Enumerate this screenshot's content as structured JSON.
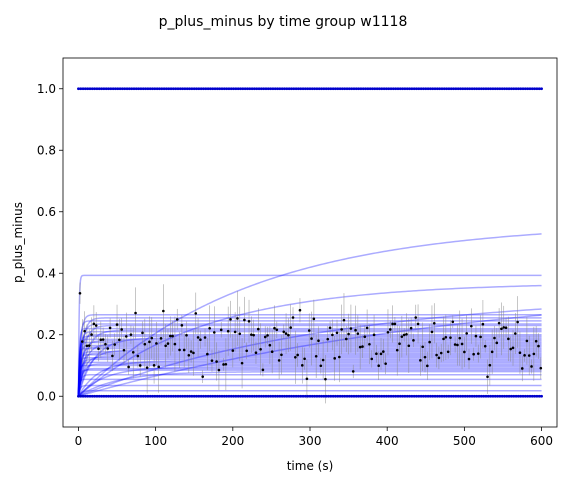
{
  "chart_data": {
    "type": "line",
    "title": "p_plus_minus by time group w1118",
    "xlabel": "time (s)",
    "ylabel": "p_plus_minus",
    "xlim": [
      -20,
      620
    ],
    "ylim": [
      -0.1,
      1.1
    ],
    "x_ticks": [
      0,
      100,
      200,
      300,
      400,
      500,
      600
    ],
    "y_ticks": [
      0.0,
      0.2,
      0.4,
      0.6,
      0.8,
      1.0
    ],
    "x_tick_labels": [
      "0",
      "100",
      "200",
      "300",
      "400",
      "500",
      "600"
    ],
    "y_tick_labels": [
      "0.0",
      "0.2",
      "0.4",
      "0.6",
      "0.8",
      "1.0"
    ],
    "grid": false,
    "legend": "none",
    "colors": {
      "fit": "#0000ff",
      "data": "#000000",
      "errorbar": "#8a8a8a",
      "boundary": "#0000cc"
    },
    "boundary_lines": [
      0.0,
      1.0
    ],
    "fit_curves": [
      {
        "plateau": 0.566,
        "rate": 0.0045
      },
      {
        "plateau": 0.4,
        "rate": 0.0018
      },
      {
        "plateau": 0.37,
        "rate": 0.006
      },
      {
        "plateau": 0.34,
        "rate": 0.003
      },
      {
        "plateau": 0.393,
        "rate": 1.2
      },
      {
        "plateau": 0.265,
        "rate": 0.35
      },
      {
        "plateau": 0.255,
        "rate": 0.2
      },
      {
        "plateau": 0.245,
        "rate": 0.5
      },
      {
        "plateau": 0.235,
        "rate": 0.25
      },
      {
        "plateau": 0.23,
        "rate": 0.15
      },
      {
        "plateau": 0.22,
        "rate": 0.8
      },
      {
        "plateau": 0.215,
        "rate": 0.1
      },
      {
        "plateau": 0.21,
        "rate": 0.4
      },
      {
        "plateau": 0.2,
        "rate": 0.3
      },
      {
        "plateau": 0.195,
        "rate": 0.6
      },
      {
        "plateau": 0.19,
        "rate": 0.05
      },
      {
        "plateau": 0.185,
        "rate": 0.7
      },
      {
        "plateau": 0.18,
        "rate": 0.2
      },
      {
        "plateau": 0.175,
        "rate": 0.9
      },
      {
        "plateau": 0.17,
        "rate": 0.12
      },
      {
        "plateau": 0.165,
        "rate": 0.5
      },
      {
        "plateau": 0.16,
        "rate": 0.3
      },
      {
        "plateau": 0.155,
        "rate": 1.0
      },
      {
        "plateau": 0.15,
        "rate": 0.08
      },
      {
        "plateau": 0.145,
        "rate": 0.4
      },
      {
        "plateau": 0.14,
        "rate": 0.25
      },
      {
        "plateau": 0.135,
        "rate": 0.6
      },
      {
        "plateau": 0.13,
        "rate": 0.15
      },
      {
        "plateau": 0.125,
        "rate": 0.7
      },
      {
        "plateau": 0.12,
        "rate": 0.35
      },
      {
        "plateau": 0.115,
        "rate": 0.04
      },
      {
        "plateau": 0.11,
        "rate": 0.5
      },
      {
        "plateau": 0.105,
        "rate": 0.2
      },
      {
        "plateau": 0.1,
        "rate": 0.9
      },
      {
        "plateau": 0.095,
        "rate": 0.03
      },
      {
        "plateau": 0.09,
        "rate": 0.3
      },
      {
        "plateau": 0.085,
        "rate": 0.6
      },
      {
        "plateau": 0.08,
        "rate": 0.02
      },
      {
        "plateau": 0.07,
        "rate": 0.4
      },
      {
        "plateau": 0.055,
        "rate": 0.8
      },
      {
        "plateau": 0.035,
        "rate": 0.5
      },
      {
        "plateau": 0.018,
        "rate": 0.3
      }
    ],
    "data_points": {
      "x_start": 2,
      "x_step": 3,
      "count": 200,
      "y_min": 0.04,
      "y_max": 0.34
    }
  }
}
